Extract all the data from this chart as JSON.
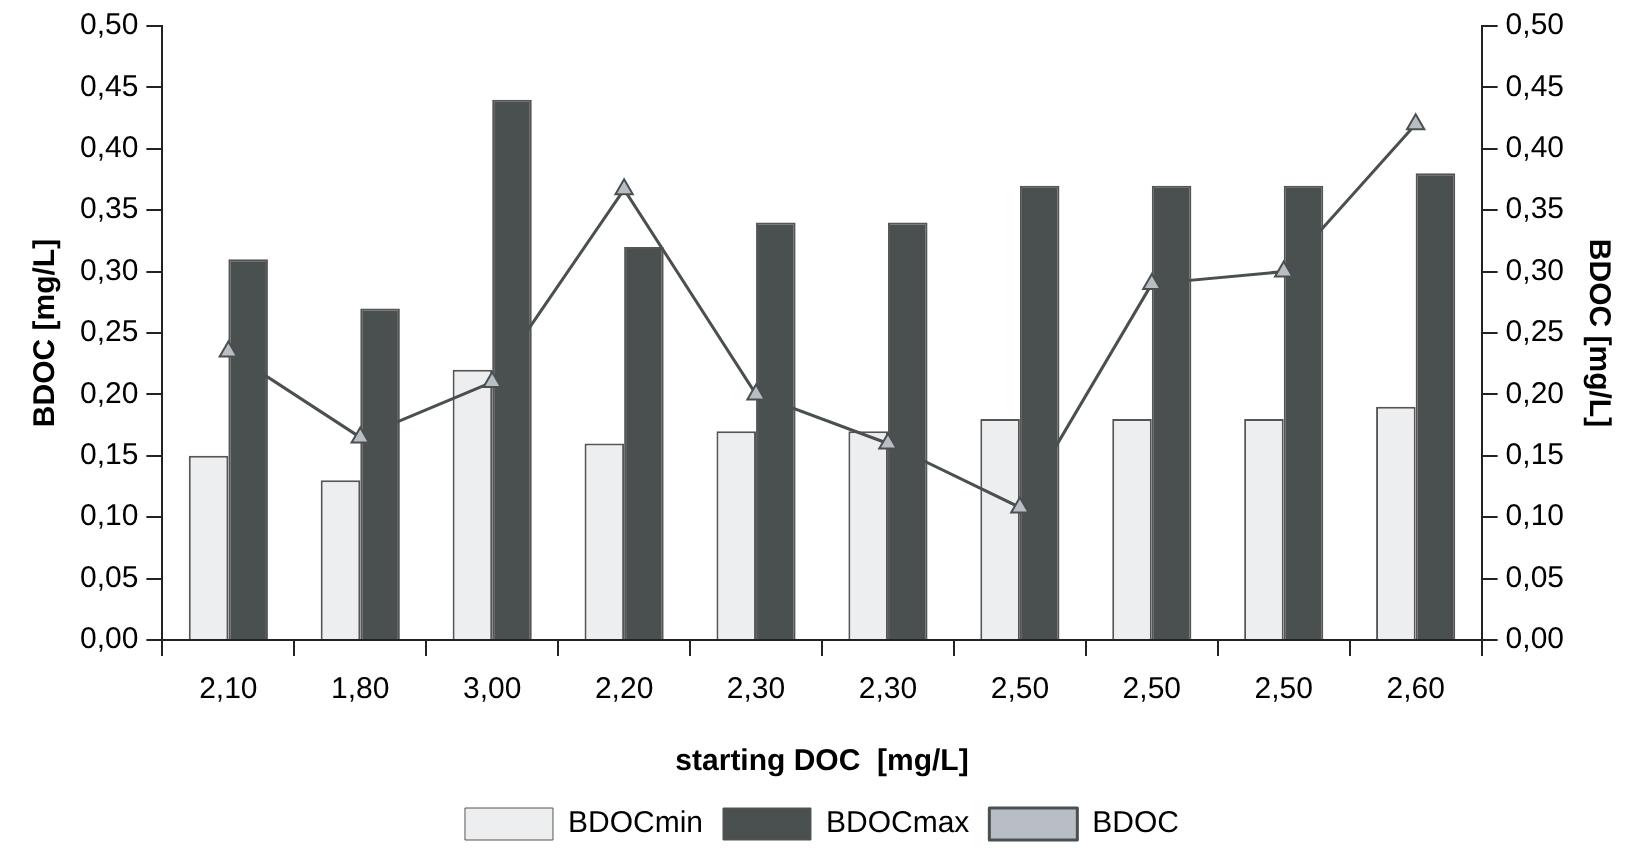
{
  "chart_data": {
    "type": "bar",
    "xlabel": "starting DOC  [mg/L]",
    "ylabel": "BDOC [mg/L]",
    "y2label": "BDOC [mg/L]",
    "categories": [
      "2,10",
      "1,80",
      "3,00",
      "2,20",
      "2,30",
      "2,30",
      "2,50",
      "2,50",
      "2,50",
      "2,60"
    ],
    "series": [
      {
        "name": "BDOCmin",
        "color": "#eceeef",
        "values": [
          0.15,
          0.13,
          0.22,
          0.16,
          0.17,
          0.17,
          0.18,
          0.18,
          0.18,
          0.19
        ]
      },
      {
        "name": "BDOCmax",
        "color": "#4a5050",
        "values": [
          0.31,
          0.27,
          0.44,
          0.32,
          0.34,
          0.34,
          0.37,
          0.37,
          0.37,
          0.38
        ]
      },
      {
        "name": "BDOC",
        "type": "line",
        "color": "#4a5050",
        "marker": "triangle",
        "values": [
          0.235,
          0.165,
          0.21,
          0.367,
          0.2,
          0.16,
          0.108,
          0.29,
          0.3,
          0.42
        ]
      }
    ],
    "ylim": [
      0,
      0.5
    ],
    "yticks": [
      {
        "value": 0,
        "label": "0,00"
      },
      {
        "value": 0.05,
        "label": "0,05"
      },
      {
        "value": 0.1,
        "label": "0,10"
      },
      {
        "value": 0.15,
        "label": "0,15"
      },
      {
        "value": 0.2,
        "label": "0,20"
      },
      {
        "value": 0.25,
        "label": "0,25"
      },
      {
        "value": 0.3,
        "label": "0,30"
      },
      {
        "value": 0.35,
        "label": "0,35"
      },
      {
        "value": 0.4,
        "label": "0,40"
      },
      {
        "value": 0.45,
        "label": "0,45"
      },
      {
        "value": 0.5,
        "label": "0,50"
      }
    ],
    "y2lim": [
      0,
      0.5
    ],
    "y2ticks": [
      {
        "value": 0,
        "label": "0,00"
      },
      {
        "value": 0.05,
        "label": "0,05"
      },
      {
        "value": 0.1,
        "label": "0,10"
      },
      {
        "value": 0.15,
        "label": "0,15"
      },
      {
        "value": 0.2,
        "label": "0,20"
      },
      {
        "value": 0.25,
        "label": "0,25"
      },
      {
        "value": 0.3,
        "label": "0,30"
      },
      {
        "value": 0.35,
        "label": "0,35"
      },
      {
        "value": 0.4,
        "label": "0,40"
      },
      {
        "value": 0.45,
        "label": "0,45"
      },
      {
        "value": 0.5,
        "label": "0,50"
      }
    ],
    "grid": false,
    "legend": "bottom",
    "line_style": "solid"
  }
}
